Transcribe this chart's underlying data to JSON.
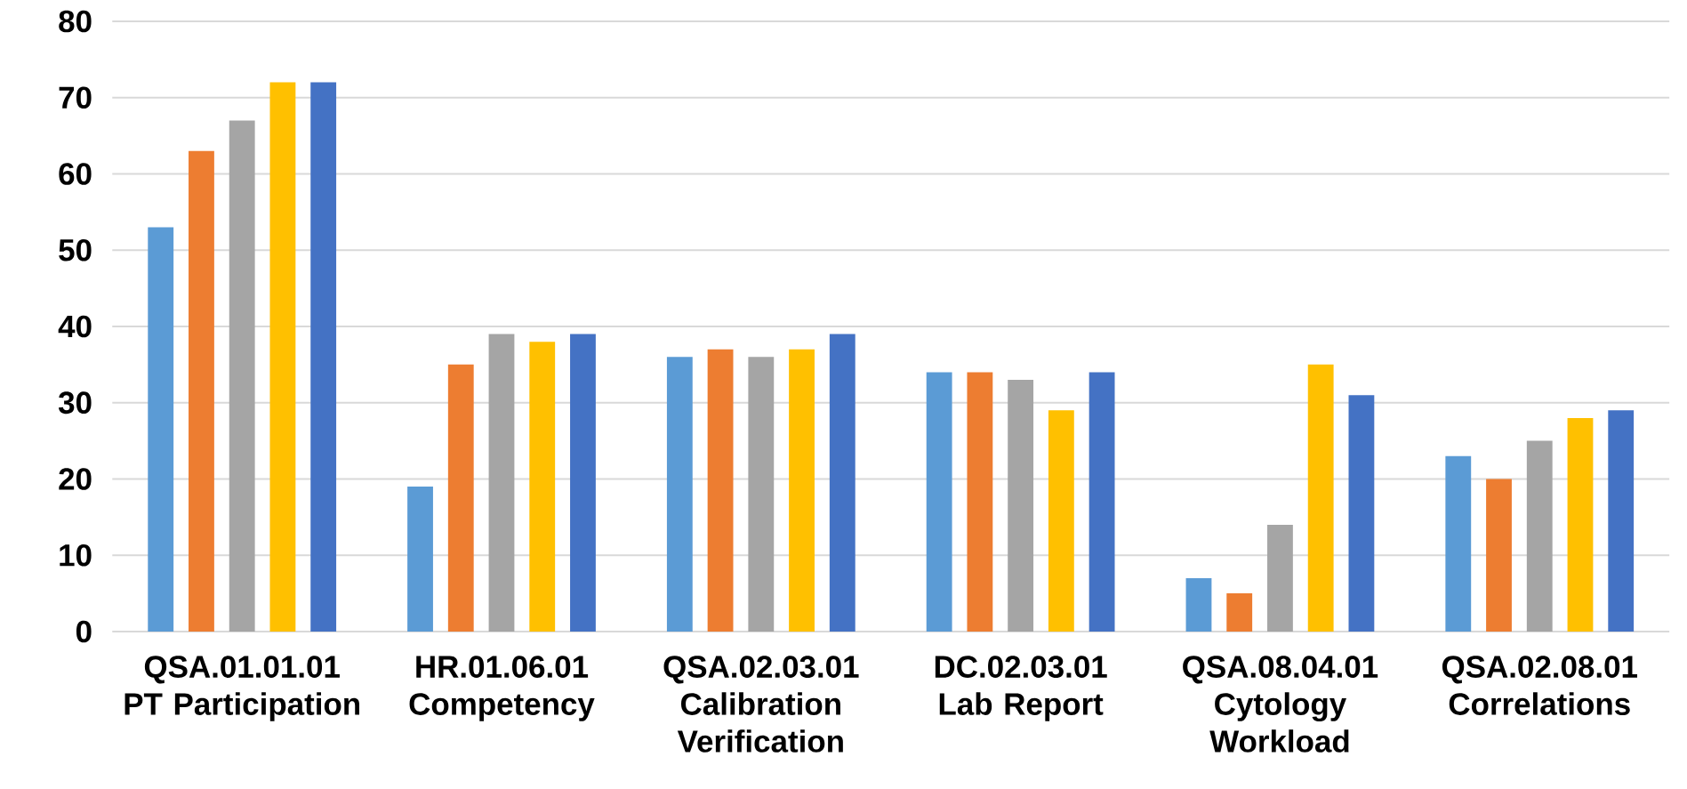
{
  "chart_data": {
    "type": "bar",
    "categories": [
      "QSA.01.01.01 PT Participation",
      "HR.01.06.01 Competency",
      "QSA.02.03.01 Calibration Verification",
      "DC.02.03.01 Lab Report",
      "QSA.08.04.01 Cytology Workload",
      "QSA.02.08.01 Correlations"
    ],
    "series": [
      {
        "color": "#5b9bd5",
        "values": [
          53,
          19,
          36,
          34,
          7,
          23
        ]
      },
      {
        "color": "#ed7d31",
        "values": [
          63,
          35,
          37,
          34,
          5,
          20
        ]
      },
      {
        "color": "#a5a5a5",
        "values": [
          67,
          39,
          36,
          33,
          14,
          25
        ]
      },
      {
        "color": "#ffc000",
        "values": [
          72,
          38,
          37,
          29,
          35,
          28
        ]
      },
      {
        "color": "#4472c4",
        "values": [
          72,
          39,
          39,
          34,
          31,
          29
        ]
      }
    ],
    "ylim": [
      0,
      80
    ],
    "yticks": [
      0,
      10,
      20,
      30,
      40,
      50,
      60,
      70,
      80
    ],
    "grid": "y"
  }
}
